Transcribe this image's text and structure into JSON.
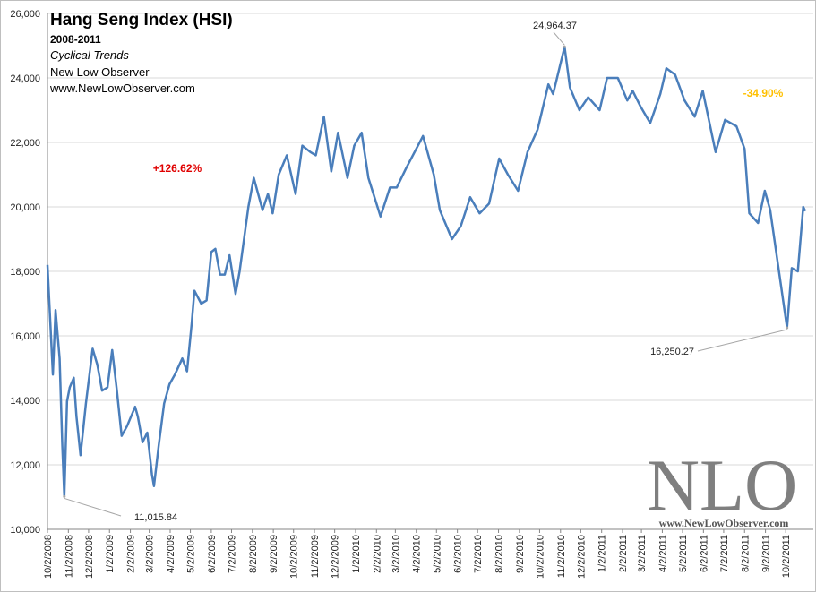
{
  "chart_data": {
    "type": "line",
    "title": "Hang Seng Index (HSI)",
    "subtitles": [
      "2008-2011",
      "Cyclical Trends",
      "New Low Observer",
      "www.NewLowObserver.com"
    ],
    "color": "#4a7ebb",
    "grid": true,
    "ylim": [
      10000,
      26000
    ],
    "yticks": [
      {
        "value": 10000,
        "label": "10,000"
      },
      {
        "value": 12000,
        "label": "12,000"
      },
      {
        "value": 14000,
        "label": "14,000"
      },
      {
        "value": 16000,
        "label": "16,000"
      },
      {
        "value": 18000,
        "label": "18,000"
      },
      {
        "value": 20000,
        "label": "20,000"
      },
      {
        "value": 22000,
        "label": "22,000"
      },
      {
        "value": 24000,
        "label": "24,000"
      },
      {
        "value": 26000,
        "label": "26,000"
      }
    ],
    "xlim": [
      "10/2/2008",
      "10/31/2011"
    ],
    "xticks": [
      "10/2/2008",
      "11/2/2008",
      "12/2/2008",
      "1/2/2009",
      "2/2/2009",
      "3/2/2009",
      "4/2/2009",
      "5/2/2009",
      "6/2/2009",
      "7/2/2009",
      "8/2/2009",
      "9/2/2009",
      "10/2/2009",
      "11/2/2009",
      "12/2/2009",
      "1/2/2010",
      "2/2/2010",
      "3/2/2010",
      "4/2/2010",
      "5/2/2010",
      "6/2/2010",
      "7/2/2010",
      "8/2/2010",
      "9/2/2010",
      "10/2/2010",
      "11/2/2010",
      "12/2/2010",
      "1/2/2011",
      "2/2/2011",
      "3/2/2011",
      "4/2/2011",
      "5/2/2011",
      "6/2/2011",
      "7/2/2011",
      "8/2/2011",
      "9/2/2011",
      "10/2/2011"
    ],
    "x": [
      "10/2/2008",
      "10/10/2008",
      "10/14/2008",
      "10/20/2008",
      "10/24/2008",
      "10/27/2008",
      "10/31/2008",
      "11/4/2008",
      "11/10/2008",
      "11/14/2008",
      "11/20/2008",
      "11/28/2008",
      "12/8/2008",
      "12/15/2008",
      "12/22/2008",
      "12/30/2008",
      "1/6/2009",
      "1/13/2009",
      "1/20/2009",
      "1/28/2009",
      "2/9/2009",
      "2/13/2009",
      "2/20/2009",
      "2/27/2009",
      "3/6/2009",
      "3/9/2009",
      "3/16/2009",
      "3/24/2009",
      "4/1/2009",
      "4/9/2009",
      "4/20/2009",
      "4/27/2009",
      "5/4/2009",
      "5/8/2009",
      "5/18/2009",
      "5/26/2009",
      "6/2/2009",
      "6/8/2009",
      "6/15/2009",
      "6/22/2009",
      "6/29/2009",
      "7/8/2009",
      "7/14/2009",
      "7/27/2009",
      "8/4/2009",
      "8/17/2009",
      "8/25/2009",
      "9/1/2009",
      "9/10/2009",
      "9/22/2009",
      "10/5/2009",
      "10/15/2009",
      "10/27/2009",
      "11/4/2009",
      "11/16/2009",
      "11/27/2009",
      "12/7/2009",
      "12/21/2009",
      "12/31/2009",
      "1/11/2010",
      "1/21/2010",
      "2/8/2010",
      "2/22/2010",
      "3/4/2010",
      "3/18/2010",
      "4/12/2010",
      "4/28/2010",
      "5/7/2010",
      "5/25/2010",
      "6/7/2010",
      "6/21/2010",
      "7/5/2010",
      "7/19/2010",
      "8/3/2010",
      "8/16/2010",
      "8/31/2010",
      "9/14/2010",
      "9/29/2010",
      "10/15/2010",
      "10/22/2010",
      "11/8/2010",
      "11/16/2010",
      "11/30/2010",
      "12/13/2010",
      "12/30/2010",
      "1/10/2011",
      "1/26/2011",
      "2/9/2011",
      "2/17/2011",
      "3/1/2011",
      "3/15/2011",
      "3/30/2011",
      "4/8/2011",
      "4/21/2011",
      "5/5/2011",
      "5/20/2011",
      "6/1/2011",
      "6/20/2011",
      "7/4/2011",
      "7/21/2011",
      "8/2/2011",
      "8/9/2011",
      "8/22/2011",
      "9/1/2011",
      "9/9/2011",
      "9/22/2011",
      "10/4/2011",
      "10/11/2011",
      "10/20/2011",
      "10/28/2011",
      "10/31/2011"
    ],
    "values": [
      18200,
      14800,
      16800,
      15300,
      12600,
      11015.84,
      13970,
      14400,
      14700,
      13500,
      12300,
      13900,
      15600,
      15100,
      14300,
      14400,
      15560,
      14300,
      12900,
      13200,
      13800,
      13500,
      12700,
      13000,
      11700,
      11340,
      12600,
      13900,
      14500,
      14800,
      15300,
      14900,
      16400,
      17400,
      17000,
      17100,
      18600,
      18700,
      17900,
      17900,
      18500,
      17300,
      18000,
      20000,
      20900,
      19900,
      20400,
      19800,
      21000,
      21600,
      20400,
      21900,
      21700,
      21600,
      22800,
      21100,
      22300,
      20900,
      21900,
      22300,
      20900,
      19700,
      20600,
      20600,
      21200,
      22200,
      21000,
      19900,
      19000,
      19400,
      20300,
      19800,
      20100,
      21500,
      21000,
      20500,
      21700,
      22400,
      23800,
      23500,
      24964.37,
      23700,
      23000,
      23400,
      23000,
      24000,
      24000,
      23300,
      23600,
      23100,
      22600,
      23500,
      24300,
      24100,
      23300,
      22800,
      23600,
      21700,
      22700,
      22500,
      21800,
      19800,
      19500,
      20500,
      19900,
      18000,
      16250.27,
      18100,
      18000,
      20000,
      19870
    ],
    "annotations": [
      {
        "text": "11,015.84",
        "x": "10/27/2008",
        "y": 11015.84
      },
      {
        "text": "24,964.37",
        "x": "11/8/2010",
        "y": 24964.37
      },
      {
        "text": "16,250.27",
        "x": "10/4/2011",
        "y": 16250.27
      },
      {
        "text": "+126.62%",
        "color": "#e00000"
      },
      {
        "text": "-34.90%",
        "color": "#ffc000"
      }
    ],
    "watermark": {
      "logo": "NLO",
      "url": "www.NewLowObserver.com"
    }
  }
}
